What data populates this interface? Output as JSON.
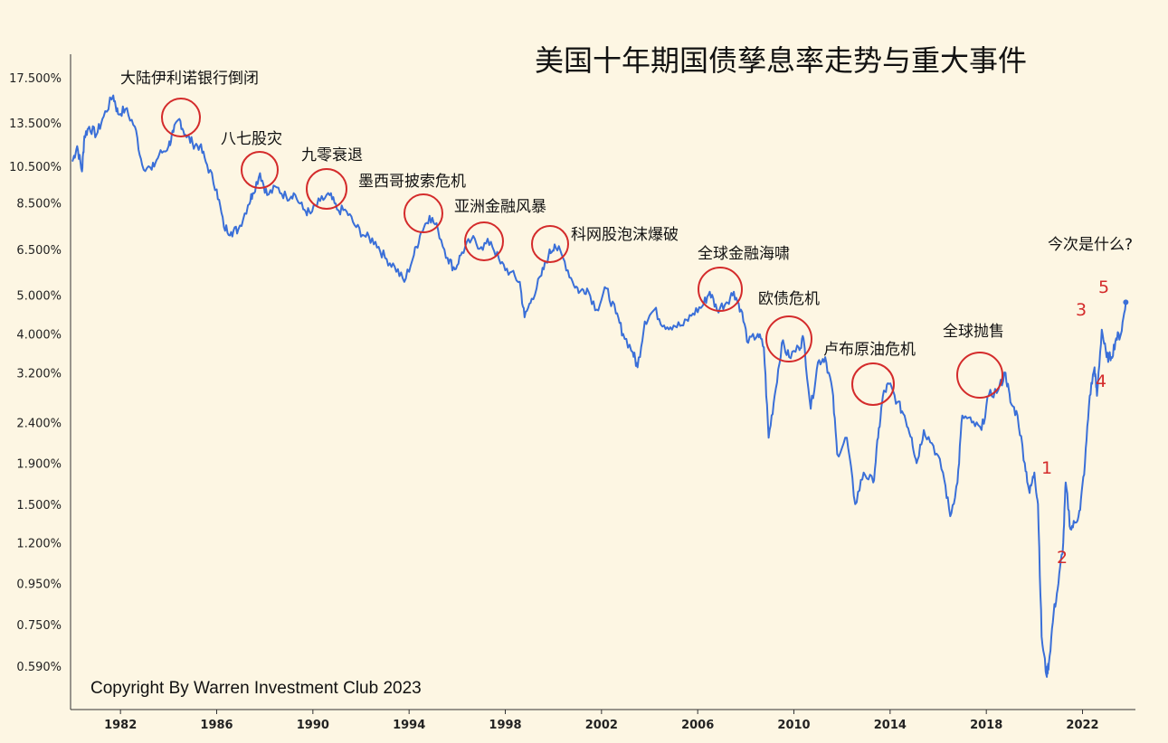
{
  "chart_data": {
    "type": "line",
    "title": "美国十年期国债孳息率走势与重大事件",
    "y_scale": "log",
    "ylim": [
      0.5,
      19
    ],
    "xlim": [
      1980.0,
      2024.2
    ],
    "ytick_labels": [
      "17.500%",
      "13.500%",
      "10.500%",
      "8.500%",
      "6.500%",
      "5.000%",
      "4.000%",
      "3.200%",
      "2.400%",
      "1.900%",
      "1.500%",
      "1.200%",
      "0.950%",
      "0.750%",
      "0.590%"
    ],
    "ytick_values": [
      17.5,
      13.5,
      10.5,
      8.5,
      6.5,
      5.0,
      4.0,
      3.2,
      2.4,
      1.9,
      1.5,
      1.2,
      0.95,
      0.75,
      0.59
    ],
    "xtick_labels": [
      "1982",
      "1986",
      "1990",
      "1994",
      "1998",
      "2002",
      "2006",
      "2010",
      "2014",
      "2018",
      "2022"
    ],
    "xtick_values": [
      1982,
      1986,
      1990,
      1994,
      1998,
      2002,
      2006,
      2010,
      2014,
      2018,
      2022
    ],
    "series": [
      {
        "color": "#3a6fd8",
        "x": [
          1980.0,
          1980.2,
          1980.4,
          1980.5,
          1980.7,
          1981.0,
          1981.3,
          1981.7,
          1981.9,
          1982.2,
          1982.6,
          1982.9,
          1983.3,
          1983.6,
          1984.0,
          1984.2,
          1984.45,
          1984.7,
          1985.0,
          1985.3,
          1985.6,
          1986.0,
          1986.3,
          1986.6,
          1986.9,
          1987.3,
          1987.5,
          1987.8,
          1988.1,
          1988.5,
          1988.9,
          1989.2,
          1989.6,
          1989.9,
          1990.3,
          1990.7,
          1991.0,
          1991.4,
          1991.8,
          1992.2,
          1992.6,
          1993.0,
          1993.4,
          1993.8,
          1994.2,
          1994.5,
          1994.85,
          1995.2,
          1995.6,
          1995.9,
          1996.2,
          1996.6,
          1997.0,
          1997.4,
          1997.8,
          1998.2,
          1998.6,
          1998.8,
          1999.1,
          1999.5,
          1999.8,
          2000.05,
          2000.4,
          2000.8,
          2001.1,
          2001.4,
          2001.8,
          2002.2,
          2002.6,
          2002.9,
          2003.3,
          2003.5,
          2003.8,
          2004.2,
          2004.6,
          2005.0,
          2005.4,
          2005.8,
          2006.2,
          2006.5,
          2006.8,
          2007.2,
          2007.5,
          2007.8,
          2008.1,
          2008.5,
          2008.75,
          2008.95,
          2009.2,
          2009.5,
          2009.8,
          2010.2,
          2010.4,
          2010.7,
          2011.0,
          2011.3,
          2011.6,
          2011.8,
          2012.2,
          2012.55,
          2012.9,
          2013.3,
          2013.5,
          2013.7,
          2013.95,
          2014.3,
          2014.6,
          2014.9,
          2015.1,
          2015.4,
          2015.8,
          2016.2,
          2016.5,
          2016.8,
          2017.0,
          2017.4,
          2017.8,
          2018.1,
          2018.5,
          2018.8,
          2019.0,
          2019.3,
          2019.6,
          2019.8,
          2020.0,
          2020.15,
          2020.3,
          2020.5,
          2020.6,
          2020.8,
          2021.0,
          2021.2,
          2021.3,
          2021.5,
          2021.7,
          2021.9,
          2022.1,
          2022.3,
          2022.5,
          2022.6,
          2022.8,
          2023.0,
          2023.2,
          2023.4,
          2023.6,
          2023.8
        ],
        "values": [
          10.8,
          11.8,
          10.2,
          12.5,
          13.2,
          12.6,
          14.0,
          15.8,
          14.2,
          14.6,
          13.2,
          10.6,
          10.3,
          11.2,
          11.8,
          12.8,
          13.8,
          12.6,
          12.0,
          11.8,
          10.6,
          9.2,
          7.4,
          7.2,
          7.3,
          8.4,
          9.0,
          10.1,
          8.9,
          9.3,
          8.8,
          9.0,
          8.2,
          8.0,
          8.6,
          8.9,
          8.2,
          8.1,
          7.4,
          7.0,
          6.8,
          6.2,
          5.9,
          5.4,
          6.3,
          7.2,
          7.9,
          7.3,
          6.2,
          5.8,
          6.4,
          6.9,
          6.6,
          6.8,
          6.0,
          5.7,
          5.4,
          4.4,
          4.9,
          5.6,
          6.3,
          6.7,
          6.2,
          5.4,
          5.1,
          5.2,
          4.6,
          5.2,
          4.5,
          4.0,
          3.6,
          3.3,
          4.3,
          4.6,
          4.2,
          4.2,
          4.2,
          4.5,
          4.7,
          5.1,
          4.6,
          4.8,
          5.1,
          4.6,
          3.8,
          4.0,
          3.7,
          2.2,
          2.8,
          3.8,
          3.5,
          3.7,
          3.9,
          2.6,
          3.4,
          3.5,
          2.9,
          2.0,
          2.2,
          1.5,
          1.8,
          1.7,
          2.2,
          2.8,
          3.0,
          2.7,
          2.5,
          2.2,
          1.9,
          2.3,
          2.1,
          1.8,
          1.4,
          1.7,
          2.5,
          2.4,
          2.3,
          2.8,
          2.9,
          3.2,
          2.7,
          2.5,
          1.9,
          1.6,
          1.8,
          1.5,
          0.7,
          0.56,
          0.6,
          0.8,
          0.95,
          1.2,
          1.7,
          1.3,
          1.35,
          1.45,
          1.9,
          2.8,
          3.3,
          2.8,
          4.1,
          3.5,
          3.5,
          3.9,
          4.0,
          4.8
        ]
      }
    ],
    "annotations": [
      {
        "text": "大陆伊利诺银行倒闭",
        "x": 1984.5,
        "y": 13.6
      },
      {
        "text": "八七股灾",
        "x": 1987.6,
        "y": 9.8
      },
      {
        "text": "九零衰退",
        "x": 1990.7,
        "y": 8.9
      },
      {
        "text": "墨西哥披索危机",
        "x": 1994.8,
        "y": 7.9
      },
      {
        "text": "亚洲金融风暴",
        "x": 1997.3,
        "y": 6.8
      },
      {
        "text": "科网股泡沫爆破",
        "x": 2000.1,
        "y": 6.6
      },
      {
        "text": "全球金融海啸",
        "x": 2007.4,
        "y": 5.05
      },
      {
        "text": "欧债危机",
        "x": 2010.4,
        "y": 3.75
      },
      {
        "text": "卢布原油危机",
        "x": 2013.8,
        "y": 2.95
      },
      {
        "text": "全球抛售",
        "x": 2018.6,
        "y": 3.1
      },
      {
        "text": "今次是什么?",
        "x": 2023.8,
        "y": 6.6
      }
    ],
    "markers": [
      "1",
      "2",
      "3",
      "4",
      "5"
    ],
    "copyright": "Copyright By Warren Investment Club 2023"
  }
}
